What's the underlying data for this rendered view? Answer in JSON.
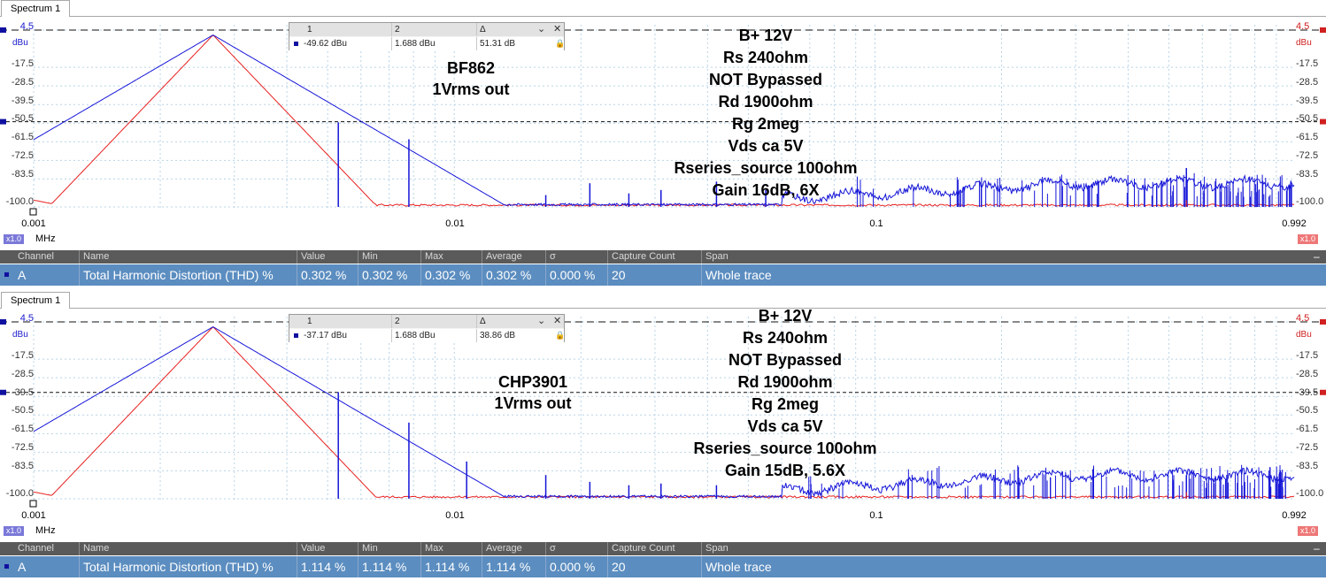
{
  "panels": [
    {
      "tab": "Spectrum 1",
      "y_ticks_left": [
        "4.5",
        "dBu",
        "-17.5",
        "-28.5",
        "-39.5",
        "-50.5",
        "-61.5",
        "-72.5",
        "-83.5",
        "-100.0"
      ],
      "y_ticks_right": [
        "4.5",
        "dBu",
        "-17.5",
        "-28.5",
        "-39.5",
        "-50.5",
        "-61.5",
        "-72.5",
        "-83.5",
        "-100.0"
      ],
      "x_ticks": [
        "0.001",
        "0.01",
        "0.1",
        "0.992"
      ],
      "x_unit": "MHz",
      "zoom_left": "x1.0",
      "zoom_right": "x1.0",
      "cursor": {
        "h1": "1",
        "h2": "2",
        "h3": "Δ",
        "v1": "-49.62 dBu",
        "v2": "1.688 dBu",
        "v3": "51.31 dB",
        "close": "✕"
      },
      "device_lines": [
        "BF862",
        "1Vrms out"
      ],
      "notes": [
        "B+ 12V",
        "Rs 240ohm",
        "NOT Bypassed",
        "Rd 1900ohm",
        "Rg 2meg",
        "Vds ca 5V",
        "Rseries_source 100ohm",
        "Gain 16dB, 6X"
      ],
      "marker_levels_dbu": [
        4.5,
        -49.62
      ],
      "table": {
        "headers": [
          "Channel",
          "Name",
          "Value",
          "Min",
          "Max",
          "Average",
          "σ",
          "Capture Count",
          "Span"
        ],
        "row": [
          "A",
          "Total Harmonic Distortion (THD) %",
          "0.302 %",
          "0.302 %",
          "0.302 %",
          "0.302 %",
          "0.000 %",
          "20",
          "Whole trace"
        ],
        "minimize": "–"
      },
      "colors": {
        "trace1": "#1515d8",
        "trace2": "#e82020"
      }
    },
    {
      "tab": "Spectrum 1",
      "y_ticks_left": [
        "4.5",
        "dBu",
        "-17.5",
        "-28.5",
        "-39.5",
        "-50.5",
        "-61.5",
        "-72.5",
        "-83.5",
        "-100.0"
      ],
      "y_ticks_right": [
        "4.5",
        "dBu",
        "-17.5",
        "-28.5",
        "-39.5",
        "-50.5",
        "-61.5",
        "-72.5",
        "-83.5",
        "-100.0"
      ],
      "x_ticks": [
        "0.001",
        "0.01",
        "0.1",
        "0.992"
      ],
      "x_unit": "MHz",
      "zoom_left": "x1.0",
      "zoom_right": "x1.0",
      "cursor": {
        "h1": "1",
        "h2": "2",
        "h3": "Δ",
        "v1": "-37.17 dBu",
        "v2": "1.688 dBu",
        "v3": "38.86 dB",
        "close": "✕"
      },
      "device_lines": [
        "CHP3901",
        "1Vrms out"
      ],
      "notes": [
        "B+ 12V",
        "Rs 240ohm",
        "NOT Bypassed",
        "Rd 1900ohm",
        "Rg 2meg",
        "Vds ca 5V",
        "Rseries_source 100ohm",
        "Gain 15dB, 5.6X"
      ],
      "marker_levels_dbu": [
        4.5,
        -37.17
      ],
      "table": {
        "headers": [
          "Channel",
          "Name",
          "Value",
          "Min",
          "Max",
          "Average",
          "σ",
          "Capture Count",
          "Span"
        ],
        "row": [
          "A",
          "Total Harmonic Distortion (THD) %",
          "1.114 %",
          "1.114 %",
          "1.114 %",
          "1.114 %",
          "0.000 %",
          "20",
          "Whole trace"
        ],
        "minimize": "–"
      },
      "colors": {
        "trace1": "#1515d8",
        "trace2": "#e82020"
      }
    }
  ]
}
